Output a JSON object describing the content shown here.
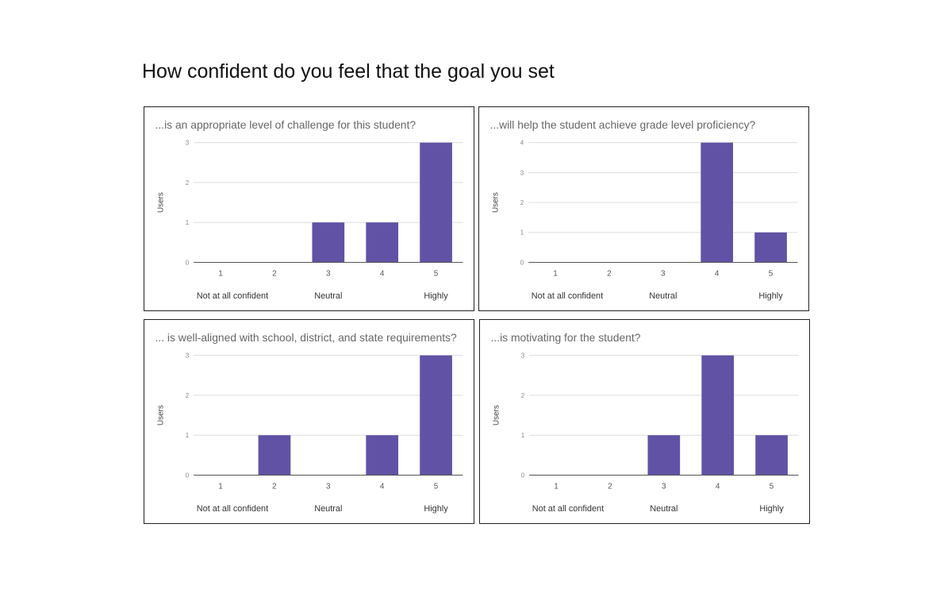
{
  "page_title": "How confident do you feel that the goal you set",
  "bar_color": "#6152a5",
  "chart_data": [
    {
      "type": "bar",
      "title": "...is an appropriate level of challenge for this student?",
      "ylabel": "Users",
      "categories": [
        "1",
        "2",
        "3",
        "4",
        "5"
      ],
      "values": [
        0,
        0,
        1,
        1,
        3
      ],
      "ylim": [
        0,
        3
      ],
      "yticks": [
        0,
        1,
        2,
        3
      ],
      "category_groups": [
        "Not at all confident",
        "Neutral",
        "Highly"
      ],
      "grid": true
    },
    {
      "type": "bar",
      "title": "...will help the student achieve grade level proficiency?",
      "ylabel": "Users",
      "categories": [
        "1",
        "2",
        "3",
        "4",
        "5"
      ],
      "values": [
        0,
        0,
        0,
        4,
        1
      ],
      "ylim": [
        0,
        4
      ],
      "yticks": [
        0,
        1,
        2,
        3,
        4
      ],
      "category_groups": [
        "Not at all confident",
        "Neutral",
        "Highly"
      ],
      "grid": true
    },
    {
      "type": "bar",
      "title": "... is well-aligned with school, district, and state requirements?",
      "ylabel": "Users",
      "categories": [
        "1",
        "2",
        "3",
        "4",
        "5"
      ],
      "values": [
        0,
        1,
        0,
        1,
        3
      ],
      "ylim": [
        0,
        3
      ],
      "yticks": [
        0,
        1,
        2,
        3
      ],
      "category_groups": [
        "Not at all confident",
        "Neutral",
        "Highly"
      ],
      "grid": true
    },
    {
      "type": "bar",
      "title": "...is motivating for the student?",
      "ylabel": "Users",
      "categories": [
        "1",
        "2",
        "3",
        "4",
        "5"
      ],
      "values": [
        0,
        0,
        1,
        3,
        1
      ],
      "ylim": [
        0,
        3
      ],
      "yticks": [
        0,
        1,
        2,
        3
      ],
      "category_groups": [
        "Not at all confident",
        "Neutral",
        "Highly"
      ],
      "grid": true
    }
  ]
}
